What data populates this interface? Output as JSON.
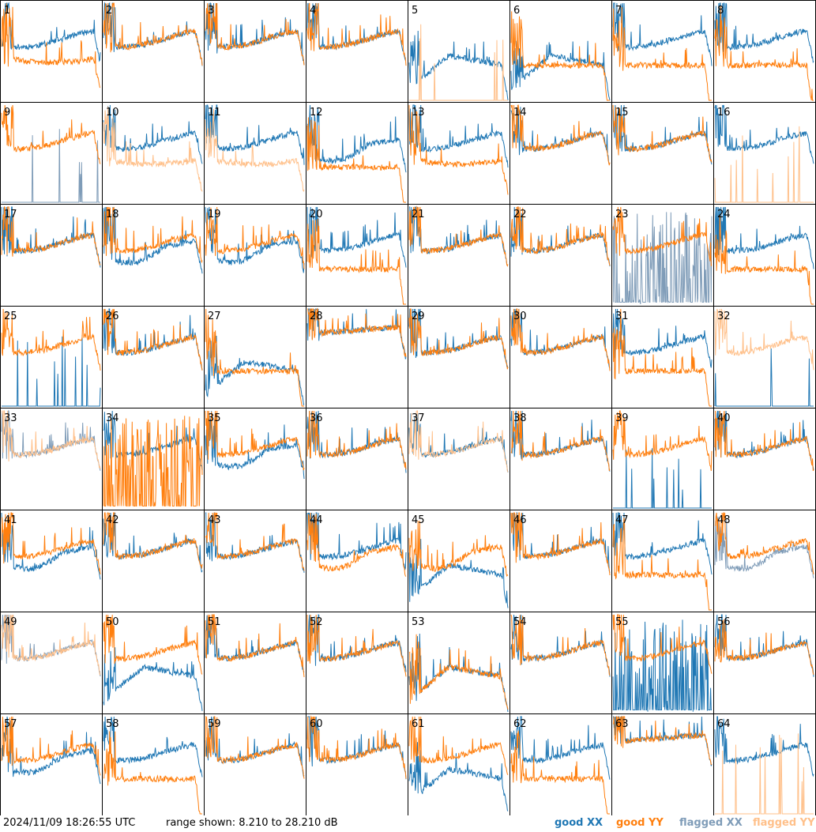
{
  "footer": {
    "timestamp": "2024/11/09 18:26:55 UTC",
    "range_text": "range shown: 8.210 to 28.210 dB",
    "legend": {
      "good_xx": "good XX",
      "good_yy": "good YY",
      "flagged_xx": "flagged XX",
      "flagged_yy": "flagged YY"
    }
  },
  "colors": {
    "good_xx": "#1f77b4",
    "good_yy": "#ff7f0e",
    "flagged_xx": "#7f9cb8",
    "flagged_yy": "#ffc08a",
    "grid": "#000000"
  },
  "chart_data": {
    "type": "line",
    "layout": "8x8 small multiples, one panel per antenna",
    "y_range_db": [
      8.21,
      28.21
    ],
    "panels": [
      {
        "id": "1",
        "xx": "good",
        "yy": "good",
        "shape_xx": 0,
        "shape_yy": 2
      },
      {
        "id": "2",
        "xx": "good",
        "yy": "good",
        "shape_xx": 0,
        "shape_yy": 0
      },
      {
        "id": "3",
        "xx": "good",
        "yy": "good",
        "shape_xx": 0,
        "shape_yy": 0
      },
      {
        "id": "4",
        "xx": "good",
        "yy": "good",
        "shape_xx": 0,
        "shape_yy": 0
      },
      {
        "id": "5",
        "xx": "good",
        "yy": "flagged",
        "shape_xx": 3,
        "shape_yy": 5
      },
      {
        "id": "6",
        "xx": "good",
        "yy": "good",
        "shape_xx": 3,
        "shape_yy": 4
      },
      {
        "id": "7",
        "xx": "good",
        "yy": "good",
        "shape_xx": 0,
        "shape_yy": 4
      },
      {
        "id": "8",
        "xx": "good",
        "yy": "good",
        "shape_xx": 0,
        "shape_yy": 4
      },
      {
        "id": "9",
        "xx": "flagged",
        "yy": "good",
        "shape_xx": 5,
        "shape_yy": 0
      },
      {
        "id": "10",
        "xx": "good",
        "yy": "flagged",
        "shape_xx": 0,
        "shape_yy": 2
      },
      {
        "id": "11",
        "xx": "good",
        "yy": "flagged",
        "shape_xx": 0,
        "shape_yy": 2
      },
      {
        "id": "12",
        "xx": "good",
        "yy": "good",
        "shape_xx": 1,
        "shape_yy": 4
      },
      {
        "id": "13",
        "xx": "good",
        "yy": "good",
        "shape_xx": 0,
        "shape_yy": 2
      },
      {
        "id": "14",
        "xx": "good",
        "yy": "good",
        "shape_xx": 0,
        "shape_yy": 0
      },
      {
        "id": "15",
        "xx": "good",
        "yy": "good",
        "shape_xx": 0,
        "shape_yy": 0
      },
      {
        "id": "16",
        "xx": "good",
        "yy": "flagged",
        "shape_xx": 0,
        "shape_yy": 5
      },
      {
        "id": "17",
        "xx": "good",
        "yy": "good",
        "shape_xx": 0,
        "shape_yy": 0
      },
      {
        "id": "18",
        "xx": "good",
        "yy": "good",
        "shape_xx": 1,
        "shape_yy": 0
      },
      {
        "id": "19",
        "xx": "good",
        "yy": "good",
        "shape_xx": 1,
        "shape_yy": 0
      },
      {
        "id": "20",
        "xx": "good",
        "yy": "good",
        "shape_xx": 0,
        "shape_yy": 4
      },
      {
        "id": "21",
        "xx": "good",
        "yy": "good",
        "shape_xx": 0,
        "shape_yy": 0
      },
      {
        "id": "22",
        "xx": "good",
        "yy": "good",
        "shape_xx": 0,
        "shape_yy": 0
      },
      {
        "id": "23",
        "xx": "flagged",
        "yy": "good",
        "shape_xx": 6,
        "shape_yy": 0
      },
      {
        "id": "24",
        "xx": "good",
        "yy": "good",
        "shape_xx": 0,
        "shape_yy": 4
      },
      {
        "id": "25",
        "xx": "good",
        "yy": "good",
        "shape_xx": 5,
        "shape_yy": 0
      },
      {
        "id": "26",
        "xx": "good",
        "yy": "good",
        "shape_xx": 0,
        "shape_yy": 0
      },
      {
        "id": "27",
        "xx": "good",
        "yy": "good",
        "shape_xx": 3,
        "shape_yy": 4
      },
      {
        "id": "28",
        "xx": "good",
        "yy": "good",
        "shape_xx": 7,
        "shape_yy": 7
      },
      {
        "id": "29",
        "xx": "good",
        "yy": "good",
        "shape_xx": 0,
        "shape_yy": 0
      },
      {
        "id": "30",
        "xx": "good",
        "yy": "good",
        "shape_xx": 0,
        "shape_yy": 0
      },
      {
        "id": "31",
        "xx": "good",
        "yy": "good",
        "shape_xx": 0,
        "shape_yy": 4
      },
      {
        "id": "32",
        "xx": "good",
        "yy": "flagged",
        "shape_xx": 5,
        "shape_yy": 0
      },
      {
        "id": "33",
        "xx": "flagged",
        "yy": "flagged",
        "shape_xx": 0,
        "shape_yy": 0
      },
      {
        "id": "34",
        "xx": "good",
        "yy": "good",
        "shape_xx": 0,
        "shape_yy": 6
      },
      {
        "id": "35",
        "xx": "good",
        "yy": "good",
        "shape_xx": 1,
        "shape_yy": 0
      },
      {
        "id": "36",
        "xx": "good",
        "yy": "good",
        "shape_xx": 0,
        "shape_yy": 0
      },
      {
        "id": "37",
        "xx": "good",
        "yy": "flagged",
        "shape_xx": 0,
        "shape_yy": 0
      },
      {
        "id": "38",
        "xx": "good",
        "yy": "good",
        "shape_xx": 0,
        "shape_yy": 0
      },
      {
        "id": "39",
        "xx": "good",
        "yy": "good",
        "shape_xx": 5,
        "shape_yy": 0
      },
      {
        "id": "40",
        "xx": "good",
        "yy": "good",
        "shape_xx": 0,
        "shape_yy": 0
      },
      {
        "id": "41",
        "xx": "good",
        "yy": "good",
        "shape_xx": 1,
        "shape_yy": 0
      },
      {
        "id": "42",
        "xx": "good",
        "yy": "good",
        "shape_xx": 0,
        "shape_yy": 0
      },
      {
        "id": "43",
        "xx": "good",
        "yy": "good",
        "shape_xx": 0,
        "shape_yy": 0
      },
      {
        "id": "44",
        "xx": "good",
        "yy": "good",
        "shape_xx": 0,
        "shape_yy": 1
      },
      {
        "id": "45",
        "xx": "good",
        "yy": "good",
        "shape_xx": 3,
        "shape_yy": 1
      },
      {
        "id": "46",
        "xx": "good",
        "yy": "good",
        "shape_xx": 0,
        "shape_yy": 0
      },
      {
        "id": "47",
        "xx": "good",
        "yy": "good",
        "shape_xx": 0,
        "shape_yy": 4
      },
      {
        "id": "48",
        "xx": "flagged",
        "yy": "good",
        "shape_xx": 1,
        "shape_yy": 0
      },
      {
        "id": "49",
        "xx": "flagged",
        "yy": "flagged",
        "shape_xx": 0,
        "shape_yy": 0
      },
      {
        "id": "50",
        "xx": "good",
        "yy": "good",
        "shape_xx": 3,
        "shape_yy": 0
      },
      {
        "id": "51",
        "xx": "good",
        "yy": "good",
        "shape_xx": 0,
        "shape_yy": 0
      },
      {
        "id": "52",
        "xx": "good",
        "yy": "good",
        "shape_xx": 0,
        "shape_yy": 0
      },
      {
        "id": "53",
        "xx": "good",
        "yy": "good",
        "shape_xx": 3,
        "shape_yy": 3
      },
      {
        "id": "54",
        "xx": "good",
        "yy": "good",
        "shape_xx": 0,
        "shape_yy": 0
      },
      {
        "id": "55",
        "xx": "good",
        "yy": "good",
        "shape_xx": 6,
        "shape_yy": 0
      },
      {
        "id": "56",
        "xx": "good",
        "yy": "good",
        "shape_xx": 0,
        "shape_yy": 0
      },
      {
        "id": "57",
        "xx": "good",
        "yy": "good",
        "shape_xx": 1,
        "shape_yy": 0
      },
      {
        "id": "58",
        "xx": "good",
        "yy": "good",
        "shape_xx": 0,
        "shape_yy": 4
      },
      {
        "id": "59",
        "xx": "good",
        "yy": "good",
        "shape_xx": 0,
        "shape_yy": 0
      },
      {
        "id": "60",
        "xx": "good",
        "yy": "good",
        "shape_xx": 0,
        "shape_yy": 0
      },
      {
        "id": "61",
        "xx": "good",
        "yy": "good",
        "shape_xx": 3,
        "shape_yy": 0
      },
      {
        "id": "62",
        "xx": "good",
        "yy": "good",
        "shape_xx": 0,
        "shape_yy": 4
      },
      {
        "id": "63",
        "xx": "good",
        "yy": "good",
        "shape_xx": 7,
        "shape_yy": 7
      },
      {
        "id": "64",
        "xx": "good",
        "yy": "flagged",
        "shape_xx": 0,
        "shape_yy": 5
      }
    ]
  }
}
